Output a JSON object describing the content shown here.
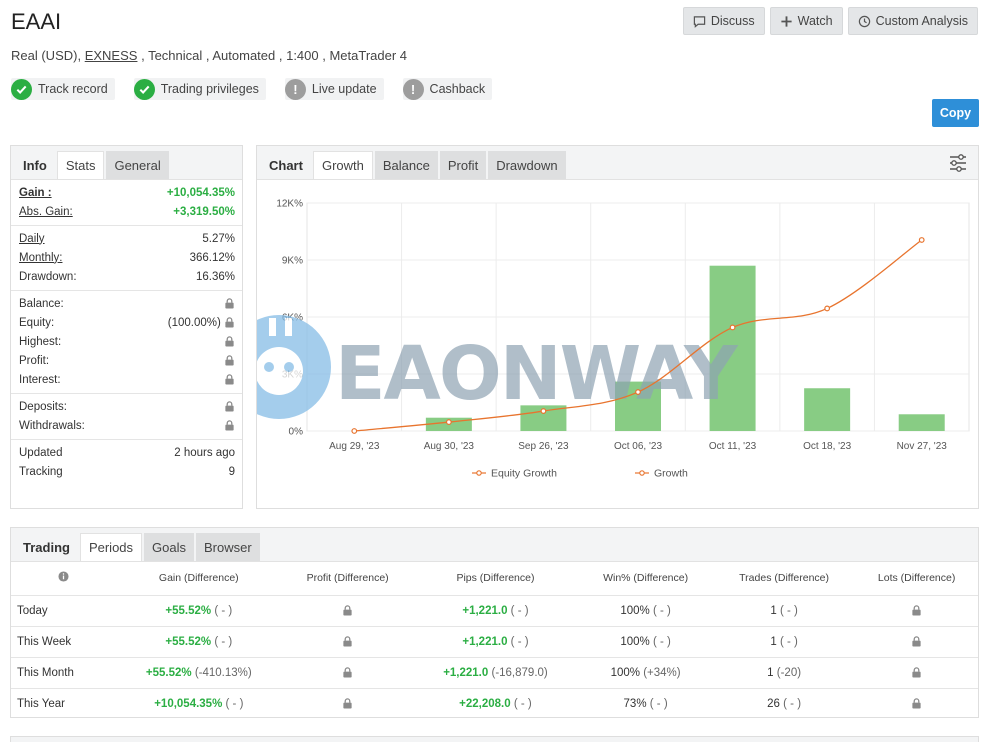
{
  "header": {
    "title": "EAAI",
    "account_type": "Real (USD),",
    "broker": "EXNESS",
    "details": ", Technical , Automated , 1:400 , MetaTrader 4"
  },
  "actions": {
    "discuss": "Discuss",
    "watch": "Watch",
    "custom_analysis": "Custom Analysis",
    "copy": "Copy"
  },
  "badges": [
    {
      "label": "Track record",
      "status": "ok"
    },
    {
      "label": "Trading privileges",
      "status": "ok"
    },
    {
      "label": "Live update",
      "status": "warn"
    },
    {
      "label": "Cashback",
      "status": "warn"
    }
  ],
  "stats": {
    "tabs": [
      "Info",
      "Stats",
      "General"
    ],
    "gain_label": "Gain :",
    "gain": "+10,054.35%",
    "abs_gain_label": "Abs. Gain:",
    "abs_gain": "+3,319.50%",
    "daily_label": "Daily",
    "daily": "5.27%",
    "monthly_label": "Monthly:",
    "monthly": "366.12%",
    "drawdown_label": "Drawdown:",
    "drawdown": "16.36%",
    "balance_label": "Balance:",
    "equity_label": "Equity:",
    "equity_pct": "(100.00%)",
    "highest_label": "Highest:",
    "profit_label": "Profit:",
    "interest_label": "Interest:",
    "deposits_label": "Deposits:",
    "withdrawals_label": "Withdrawals:",
    "updated_label": "Updated",
    "updated": "2 hours ago",
    "tracking_label": "Tracking",
    "tracking": "9"
  },
  "chart_tabs": [
    "Chart",
    "Growth",
    "Balance",
    "Profit",
    "Drawdown"
  ],
  "watermark": "EAONWAY",
  "chart_data": {
    "type": "bar",
    "categories": [
      "Aug 29, '23",
      "Aug 30, '23",
      "Sep 26, '23",
      "Oct 06, '23",
      "Oct 11, '23",
      "Oct 18, '23",
      "Nov 27, '23"
    ],
    "y_ticks": [
      "0%",
      "3K%",
      "6K%",
      "9K%",
      "12K%"
    ],
    "ylim": [
      0,
      12000
    ],
    "series": [
      {
        "name": "Equity Growth",
        "type": "bar",
        "color": "#88cc84",
        "values": [
          0,
          700,
          1350,
          2600,
          8700,
          2250,
          880
        ]
      },
      {
        "name": "Growth",
        "type": "line",
        "color": "#e8742e",
        "values": [
          0,
          470,
          1050,
          2050,
          5450,
          6450,
          10054
        ]
      }
    ],
    "legend": "bottom",
    "grid": true
  },
  "trading": {
    "tabs": [
      "Trading",
      "Periods",
      "Goals",
      "Browser"
    ],
    "columns": [
      "Gain (Difference)",
      "Profit (Difference)",
      "Pips (Difference)",
      "Win% (Difference)",
      "Trades (Difference)",
      "Lots (Difference)"
    ],
    "rows": [
      {
        "period": "Today",
        "gain": "+55.52%",
        "gain_diff": "( - )",
        "pips": "+1,221.0",
        "pips_diff": "( - )",
        "win": "100%",
        "win_diff": "( - )",
        "trades": "1",
        "trades_diff": "( - )"
      },
      {
        "period": "This Week",
        "gain": "+55.52%",
        "gain_diff": "( - )",
        "pips": "+1,221.0",
        "pips_diff": "( - )",
        "win": "100%",
        "win_diff": "( - )",
        "trades": "1",
        "trades_diff": "( - )"
      },
      {
        "period": "This Month",
        "gain": "+55.52%",
        "gain_diff": "(-410.13%)",
        "pips": "+1,221.0",
        "pips_diff": "(-16,879.0)",
        "win": "100%",
        "win_diff": "(+34%)",
        "trades": "1",
        "trades_diff": "(-20)"
      },
      {
        "period": "This Year",
        "gain": "+10,054.35%",
        "gain_diff": "( - )",
        "pips": "+22,208.0",
        "pips_diff": "( - )",
        "win": "73%",
        "win_diff": "( - )",
        "trades": "26",
        "trades_diff": "( - )"
      }
    ]
  }
}
